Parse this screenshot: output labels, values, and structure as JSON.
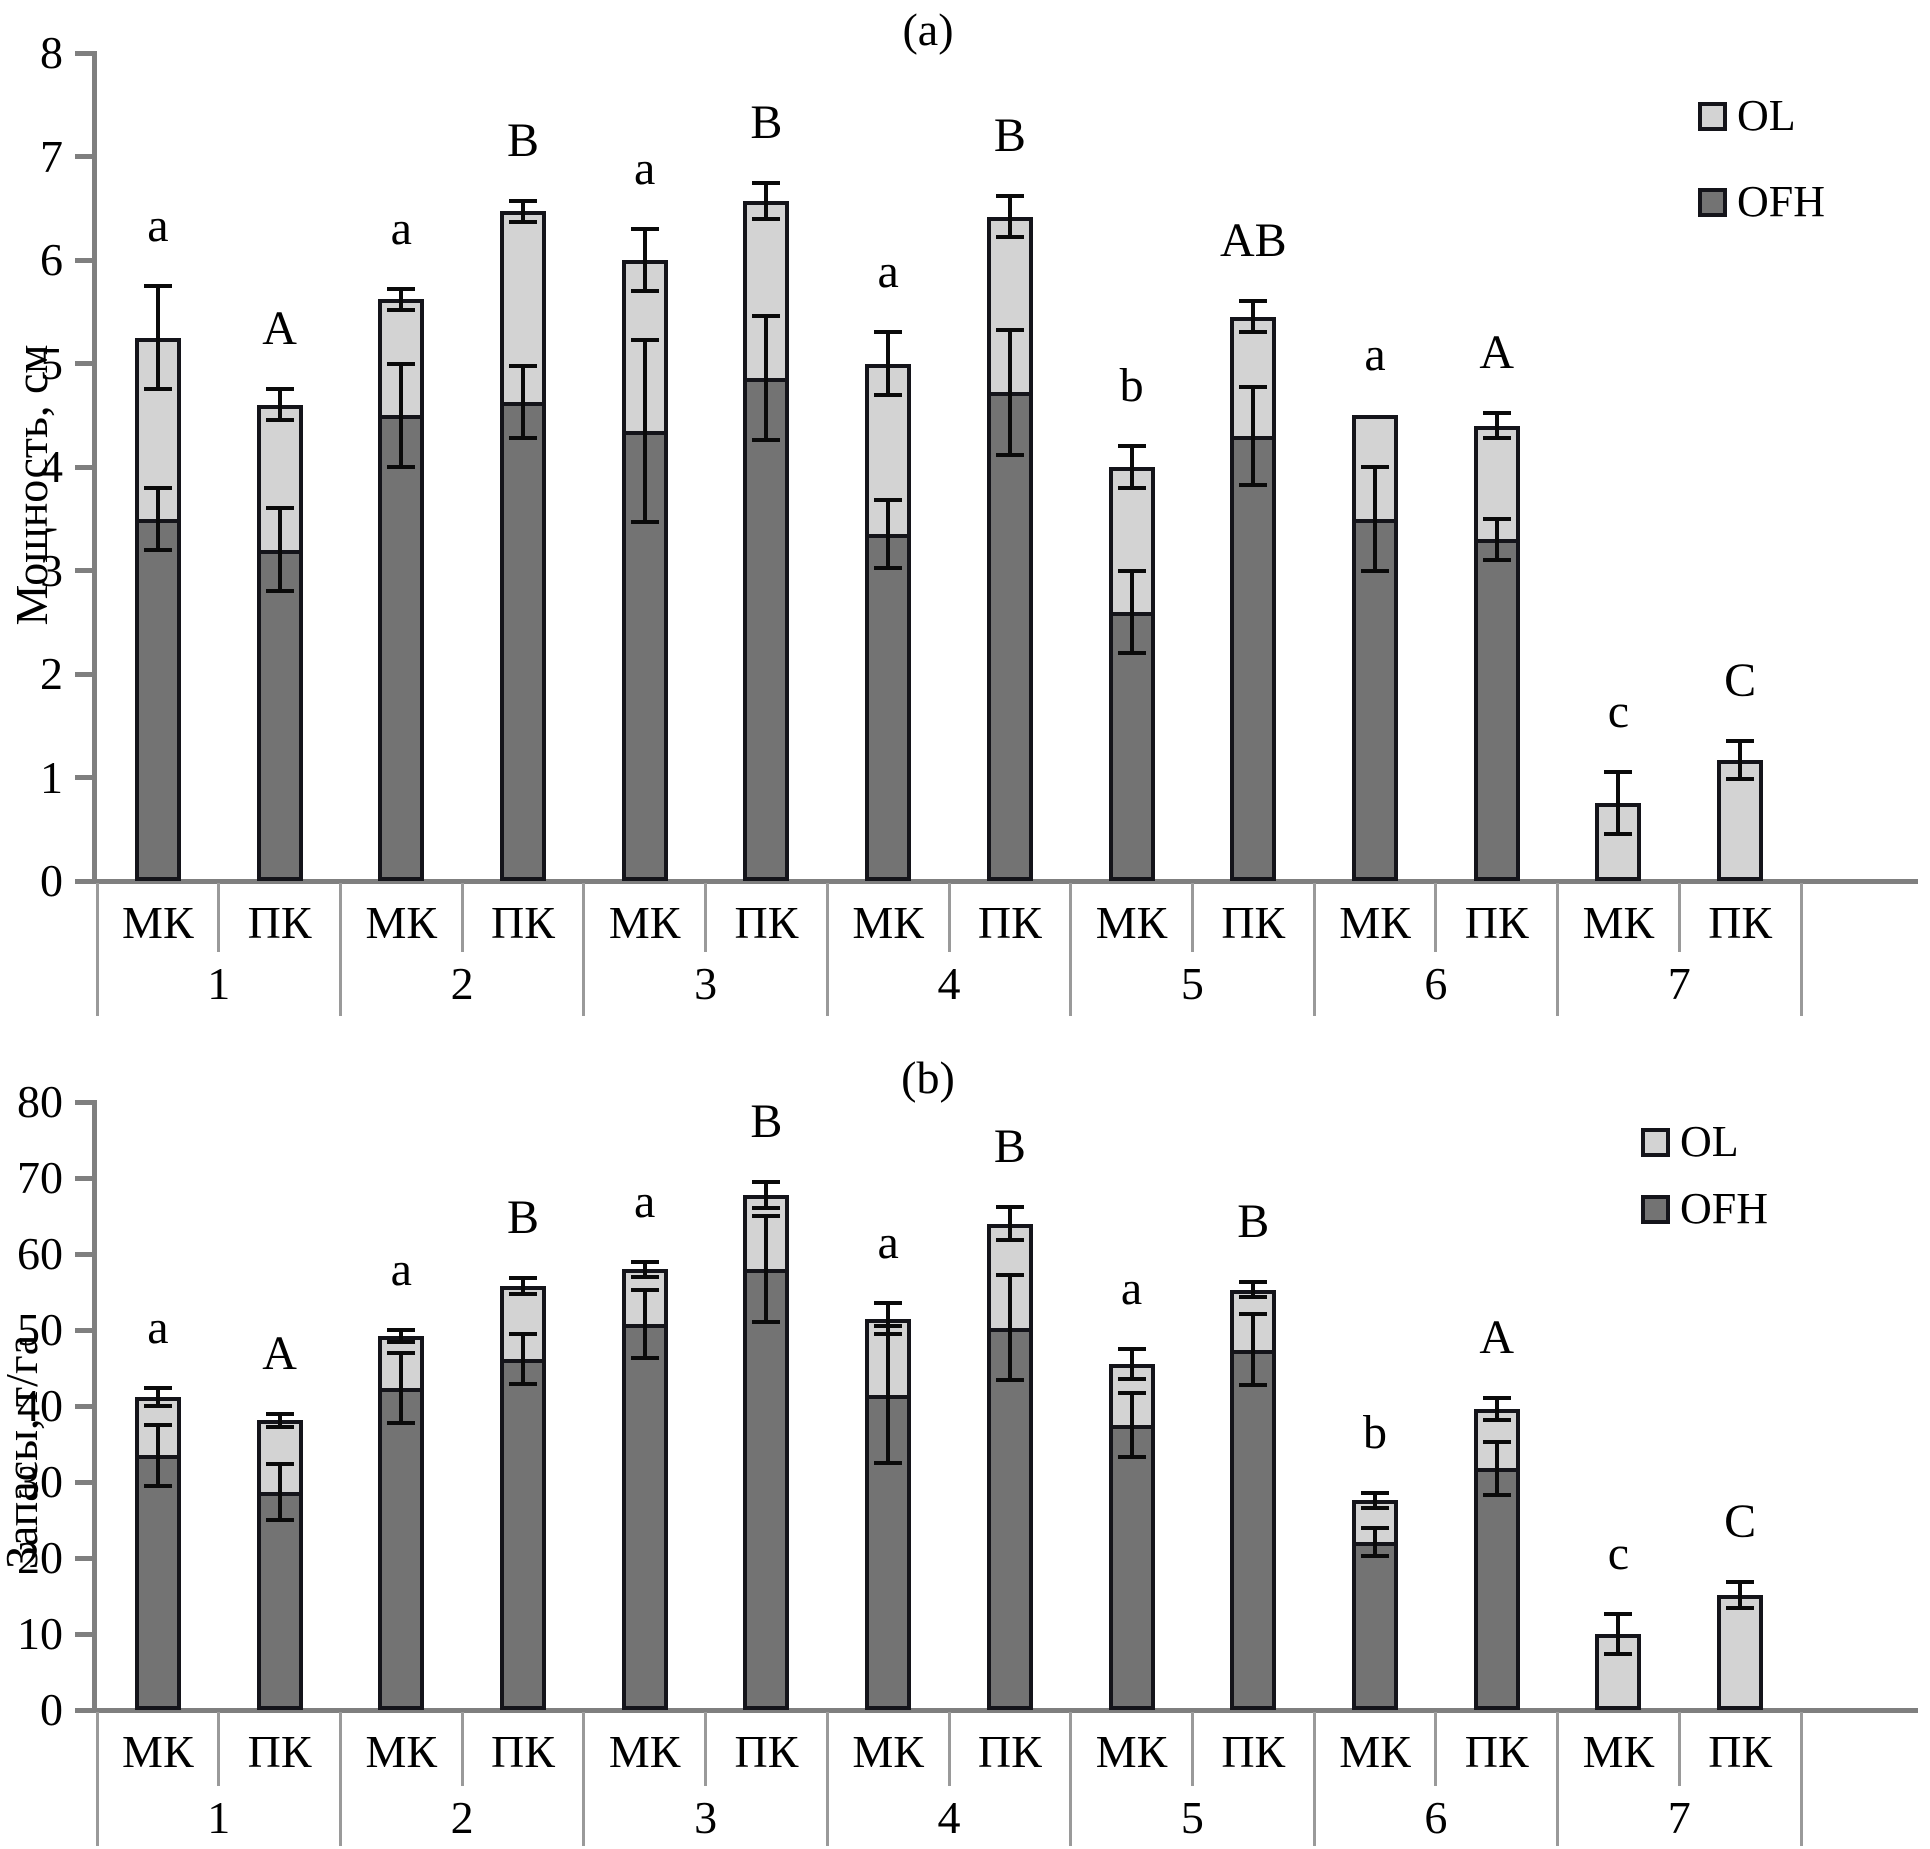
{
  "figure": {
    "type": "two-panel stacked bar chart with error bars",
    "language": "Russian"
  },
  "colors": {
    "OL": "#d3d3d3",
    "OFH": "#737373",
    "bar_border": "#14141a",
    "error_bar": "#0a0a0a",
    "axis": "#7f7f7f",
    "table_line": "#9a9a9a",
    "text": "#000000"
  },
  "chart_data": [
    {
      "id": "a",
      "type": "bar",
      "stacked": true,
      "title": "(a)",
      "ylabel": "Мощность, см",
      "xlabel": "",
      "ylim": [
        0,
        8
      ],
      "yticks": [
        0,
        1,
        2,
        3,
        4,
        5,
        6,
        7,
        8
      ],
      "grid": false,
      "legend_position": "top-right",
      "legend": {
        "items": [
          {
            "label": "OL"
          },
          {
            "label": "OFH"
          }
        ]
      },
      "series_names": [
        "OFH",
        "OL"
      ],
      "groups": [
        {
          "group": "1",
          "bars": [
            {
              "label": "МК",
              "letter": "a",
              "OFH": 3.5,
              "OL": 1.75,
              "total": 5.25,
              "err_OFH": 0.3,
              "err_total": 0.5
            },
            {
              "label": "ПК",
              "letter": "A",
              "OFH": 3.2,
              "OL": 1.4,
              "total": 4.6,
              "err_OFH": 0.4,
              "err_total": 0.15
            }
          ]
        },
        {
          "group": "2",
          "bars": [
            {
              "label": "МК",
              "letter": "a",
              "OFH": 4.5,
              "OL": 1.12,
              "total": 5.62,
              "err_OFH": 0.5,
              "err_total": 0.1
            },
            {
              "label": "ПК",
              "letter": "B",
              "OFH": 4.63,
              "OL": 1.84,
              "total": 6.47,
              "err_OFH": 0.35,
              "err_total": 0.1
            }
          ]
        },
        {
          "group": "3",
          "bars": [
            {
              "label": "МК",
              "letter": "a",
              "OFH": 4.35,
              "OL": 1.65,
              "total": 6.0,
              "err_OFH": 0.88,
              "err_total": 0.3
            },
            {
              "label": "ПК",
              "letter": "B",
              "OFH": 4.86,
              "OL": 1.71,
              "total": 6.57,
              "err_OFH": 0.6,
              "err_total": 0.17
            }
          ]
        },
        {
          "group": "4",
          "bars": [
            {
              "label": "МК",
              "letter": "a",
              "OFH": 3.35,
              "OL": 1.65,
              "total": 5.0,
              "err_OFH": 0.33,
              "err_total": 0.3
            },
            {
              "label": "ПК",
              "letter": "B",
              "OFH": 4.72,
              "OL": 1.7,
              "total": 6.42,
              "err_OFH": 0.6,
              "err_total": 0.2
            }
          ]
        },
        {
          "group": "5",
          "bars": [
            {
              "label": "МК",
              "letter": "b",
              "OFH": 2.6,
              "OL": 1.4,
              "total": 4.0,
              "err_OFH": 0.4,
              "err_total": 0.2
            },
            {
              "label": "ПК",
              "letter": "AB",
              "OFH": 4.3,
              "OL": 1.15,
              "total": 5.45,
              "err_OFH": 0.47,
              "err_total": 0.15
            }
          ]
        },
        {
          "group": "6",
          "bars": [
            {
              "label": "МК",
              "letter": "a",
              "OFH": 3.5,
              "OL": 1.0,
              "total": 4.5,
              "err_OFH": 0.5,
              "err_total": null
            },
            {
              "label": "ПК",
              "letter": "A",
              "OFH": 3.3,
              "OL": 1.1,
              "total": 4.4,
              "err_OFH": 0.2,
              "err_total": 0.12
            }
          ]
        },
        {
          "group": "7",
          "bars": [
            {
              "label": "МК",
              "letter": "c",
              "OFH": 0,
              "OL": 0.75,
              "total": 0.75,
              "err_OFH": null,
              "err_total": 0.3
            },
            {
              "label": "ПК",
              "letter": "C",
              "OFH": 0,
              "OL": 1.17,
              "total": 1.17,
              "err_OFH": null,
              "err_total": 0.18
            }
          ]
        }
      ]
    },
    {
      "id": "b",
      "type": "bar",
      "stacked": true,
      "title": "(b)",
      "ylabel": "Запасы, т/га",
      "xlabel": "",
      "ylim": [
        0,
        80
      ],
      "yticks": [
        0,
        10,
        20,
        30,
        40,
        50,
        60,
        70,
        80
      ],
      "grid": false,
      "legend_position": "top-right",
      "legend": {
        "items": [
          {
            "label": "OL"
          },
          {
            "label": "OFH"
          }
        ]
      },
      "series_names": [
        "OFH",
        "OL"
      ],
      "groups": [
        {
          "group": "1",
          "bars": [
            {
              "label": "МК",
              "letter": "a",
              "OFH": 33.5,
              "OL": 7.7,
              "total": 41.2,
              "err_OFH": 4.0,
              "err_total": 1.2
            },
            {
              "label": "ПК",
              "letter": "A",
              "OFH": 28.7,
              "OL": 9.4,
              "total": 38.1,
              "err_OFH": 3.7,
              "err_total": 0.8
            }
          ]
        },
        {
          "group": "2",
          "bars": [
            {
              "label": "МК",
              "letter": "a",
              "OFH": 42.4,
              "OL": 6.8,
              "total": 49.2,
              "err_OFH": 4.6,
              "err_total": 0.8
            },
            {
              "label": "ПК",
              "letter": "B",
              "OFH": 46.2,
              "OL": 9.6,
              "total": 55.8,
              "err_OFH": 3.3,
              "err_total": 1.0
            }
          ]
        },
        {
          "group": "3",
          "bars": [
            {
              "label": "МК",
              "letter": "a",
              "OFH": 50.8,
              "OL": 7.2,
              "total": 58.0,
              "err_OFH": 4.5,
              "err_total": 1.0
            },
            {
              "label": "ПК",
              "letter": "B",
              "OFH": 58.0,
              "OL": 9.8,
              "total": 67.8,
              "err_OFH": 7.0,
              "err_total": 1.7
            }
          ]
        },
        {
          "group": "4",
          "bars": [
            {
              "label": "МК",
              "letter": "a",
              "OFH": 41.5,
              "OL": 10.0,
              "total": 51.5,
              "err_OFH": 9.0,
              "err_total": 2.0
            },
            {
              "label": "ПК",
              "letter": "B",
              "OFH": 50.3,
              "OL": 13.7,
              "total": 64.0,
              "err_OFH": 6.9,
              "err_total": 2.2
            }
          ]
        },
        {
          "group": "5",
          "bars": [
            {
              "label": "МК",
              "letter": "a",
              "OFH": 37.5,
              "OL": 8.0,
              "total": 45.5,
              "err_OFH": 4.2,
              "err_total": 2.0
            },
            {
              "label": "ПК",
              "letter": "B",
              "OFH": 47.4,
              "OL": 7.9,
              "total": 55.3,
              "err_OFH": 4.7,
              "err_total": 1.0
            }
          ]
        },
        {
          "group": "6",
          "bars": [
            {
              "label": "МК",
              "letter": "b",
              "OFH": 22.1,
              "OL": 5.5,
              "total": 27.6,
              "err_OFH": 1.8,
              "err_total": 1.0
            },
            {
              "label": "ПК",
              "letter": "A",
              "OFH": 31.8,
              "OL": 7.8,
              "total": 39.6,
              "err_OFH": 3.5,
              "err_total": 1.4
            }
          ]
        },
        {
          "group": "7",
          "bars": [
            {
              "label": "МК",
              "letter": "c",
              "OFH": 0,
              "OL": 10.0,
              "total": 10.0,
              "err_OFH": null,
              "err_total": 2.6
            },
            {
              "label": "ПК",
              "letter": "C",
              "OFH": 0,
              "OL": 15.1,
              "total": 15.1,
              "err_OFH": null,
              "err_total": 1.7
            }
          ]
        }
      ]
    }
  ]
}
